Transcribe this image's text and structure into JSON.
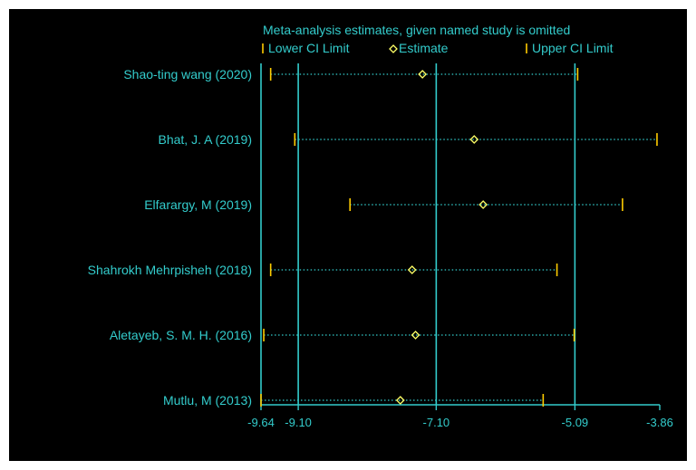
{
  "colors": {
    "background": "#000000",
    "axis": "#33cccc",
    "text": "#33cccc",
    "ci_marker": "#ffcc00",
    "estimate": "#ffff66",
    "dotted_line": "#33cccc"
  },
  "chart_data": {
    "type": "forest",
    "title": "Meta-analysis estimates, given named study is omitted",
    "legend": [
      {
        "name": "Lower CI Limit",
        "marker": "tick"
      },
      {
        "name": "Estimate",
        "marker": "diamond"
      },
      {
        "name": "Upper CI Limit",
        "marker": "tick"
      }
    ],
    "xlim": [
      -9.64,
      -3.86
    ],
    "x_ticks": [
      "-9.64",
      "-9.10",
      "-7.10",
      "-5.09",
      "-3.86"
    ],
    "x_tick_values": [
      -9.64,
      -9.1,
      -7.1,
      -5.09,
      -3.86
    ],
    "reference_lines": [
      -9.1,
      -7.1,
      -5.09
    ],
    "studies": [
      {
        "label": "Shao-ting wang (2020)",
        "lower": -9.5,
        "estimate": -7.3,
        "upper": -5.05
      },
      {
        "label": "Bhat, J. A (2019)",
        "lower": -9.15,
        "estimate": -6.55,
        "upper": -3.9
      },
      {
        "label": "Elfarargy, M (2019)",
        "lower": -8.35,
        "estimate": -6.42,
        "upper": -4.4
      },
      {
        "label": "Shahrokh Mehrpisheh (2018)",
        "lower": -9.5,
        "estimate": -7.45,
        "upper": -5.35
      },
      {
        "label": "Aletayeb, S. M. H. (2016)",
        "lower": -9.6,
        "estimate": -7.4,
        "upper": -5.1
      },
      {
        "label": "Mutlu, M (2013)",
        "lower": -9.64,
        "estimate": -7.62,
        "upper": -5.55
      }
    ]
  }
}
